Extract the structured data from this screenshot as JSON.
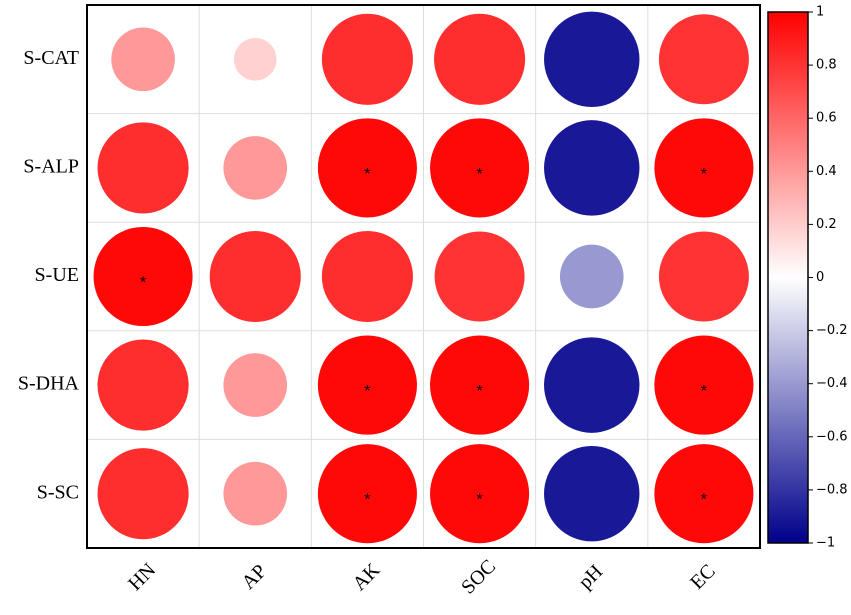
{
  "chart_data": {
    "type": "correlation-circles",
    "rows": [
      "S-CAT",
      "S-ALP",
      "S-UE",
      "S-DHA",
      "S-SC"
    ],
    "columns": [
      "HN",
      "AP",
      "AK",
      "SOC",
      "pH",
      "EC"
    ],
    "values": [
      [
        0.4,
        0.18,
        0.82,
        0.82,
        -0.9,
        0.8
      ],
      [
        0.82,
        0.4,
        0.97,
        0.97,
        -0.9,
        0.97
      ],
      [
        0.97,
        0.82,
        0.82,
        0.8,
        -0.4,
        0.8
      ],
      [
        0.82,
        0.4,
        0.97,
        0.97,
        -0.9,
        0.97
      ],
      [
        0.82,
        0.4,
        0.97,
        0.97,
        -0.9,
        0.97
      ]
    ],
    "significance": [
      [
        null,
        null,
        null,
        null,
        null,
        null
      ],
      [
        null,
        null,
        "*",
        "*",
        null,
        "*"
      ],
      [
        "*",
        null,
        null,
        null,
        null,
        null
      ],
      [
        null,
        null,
        "*",
        "*",
        null,
        "*"
      ],
      [
        null,
        null,
        "*",
        "*",
        null,
        "*"
      ]
    ],
    "colormap": [
      "#00008b",
      "#ffffff",
      "#ff0000"
    ],
    "zlim": [
      -1,
      1
    ],
    "zticks": [
      1,
      0.8,
      0.6,
      0.4,
      0.2,
      0,
      {
        "value": -0.2,
        "label": "−0.2"
      },
      {
        "value": -0.4,
        "label": "−0.4"
      },
      {
        "value": -0.6,
        "label": "−0.6"
      },
      {
        "value": -0.8,
        "label": "−0.8"
      },
      {
        "value": -1,
        "label": "−1"
      }
    ]
  }
}
